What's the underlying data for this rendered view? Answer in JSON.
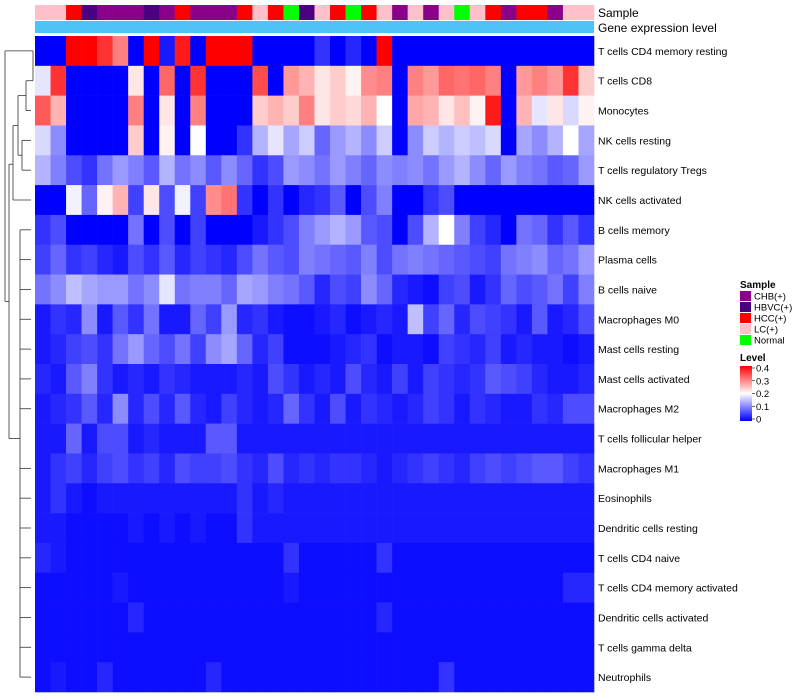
{
  "chart_data": {
    "type": "heatmap",
    "title": "",
    "annotation_tracks": [
      "Sample",
      "Gene expression level"
    ],
    "sample_groups": [
      {
        "name": "CHB(+)",
        "color": "#8B008B"
      },
      {
        "name": "HBVC(+)",
        "color": "#4B0082"
      },
      {
        "name": "HCC(+)",
        "color": "#FF0000"
      },
      {
        "name": "LC(+)",
        "color": "#FFC0CB"
      },
      {
        "name": "Normal",
        "color": "#00FF00"
      }
    ],
    "sample_annotation": [
      3,
      3,
      2,
      1,
      0,
      0,
      0,
      1,
      0,
      2,
      0,
      0,
      0,
      2,
      3,
      2,
      4,
      1,
      3,
      2,
      4,
      2,
      3,
      0,
      3,
      0,
      3,
      4,
      3,
      2,
      0,
      2,
      2,
      0,
      3,
      3
    ],
    "gene_expression_level_color": "#4FC3F7",
    "rows": [
      "T cells CD4 memory resting",
      "T cells CD8",
      "Monocytes",
      "NK cells resting",
      "T cells regulatory  Tregs",
      "NK cells activated",
      "B cells memory",
      "Plasma cells",
      "B cells naive",
      "Macrophages M0",
      "Mast cells resting",
      "Mast cells activated",
      "Macrophages M2",
      "T cells follicular helper",
      "Macrophages M1",
      "Eosinophils",
      "Dendritic cells resting",
      "T cells CD4 naive",
      "T cells CD4 memory activated",
      "Dendritic cells activated",
      "T cells gamma delta",
      "Neutrophils"
    ],
    "values": [
      [
        0.0,
        0.0,
        0.4,
        0.4,
        0.36,
        0.3,
        0.0,
        0.4,
        0.02,
        0.38,
        0.0,
        0.4,
        0.4,
        0.4,
        0.0,
        0.0,
        0.0,
        0.0,
        0.04,
        0.0,
        0.03,
        0.0,
        0.4,
        0.0,
        0.0,
        0.0,
        0.0,
        0.0,
        0.0,
        0.0,
        0.0,
        0.0,
        0.0,
        0.0,
        0.0,
        0.0
      ],
      [
        0.18,
        0.36,
        0.0,
        0.0,
        0.0,
        0.0,
        0.22,
        0.0,
        0.32,
        0.0,
        0.36,
        0.0,
        0.0,
        0.0,
        0.34,
        0.0,
        0.28,
        0.26,
        0.22,
        0.24,
        0.21,
        0.29,
        0.3,
        0.0,
        0.3,
        0.28,
        0.32,
        0.31,
        0.32,
        0.3,
        0.0,
        0.28,
        0.3,
        0.28,
        0.36,
        0.24
      ],
      [
        0.33,
        0.26,
        0.0,
        0.0,
        0.0,
        0.0,
        0.3,
        0.0,
        0.22,
        0.0,
        0.3,
        0.0,
        0.0,
        0.0,
        0.24,
        0.26,
        0.24,
        0.3,
        0.22,
        0.24,
        0.23,
        0.26,
        0.2,
        0.0,
        0.27,
        0.26,
        0.22,
        0.25,
        0.21,
        0.38,
        0.0,
        0.26,
        0.18,
        0.22,
        0.17,
        0.21
      ],
      [
        0.17,
        0.11,
        0.0,
        0.0,
        0.0,
        0.0,
        0.24,
        0.0,
        0.21,
        0.0,
        0.2,
        0.0,
        0.0,
        0.04,
        0.14,
        0.18,
        0.13,
        0.16,
        0.08,
        0.12,
        0.14,
        0.11,
        0.16,
        0.0,
        0.11,
        0.16,
        0.14,
        0.16,
        0.15,
        0.17,
        0.0,
        0.13,
        0.11,
        0.14,
        0.2,
        0.13
      ],
      [
        0.14,
        0.1,
        0.06,
        0.04,
        0.09,
        0.12,
        0.1,
        0.07,
        0.14,
        0.09,
        0.11,
        0.07,
        0.11,
        0.08,
        0.04,
        0.06,
        0.12,
        0.11,
        0.09,
        0.12,
        0.1,
        0.08,
        0.11,
        0.1,
        0.11,
        0.09,
        0.12,
        0.14,
        0.11,
        0.08,
        0.12,
        0.1,
        0.09,
        0.07,
        0.08,
        0.12
      ],
      [
        0.0,
        0.0,
        0.19,
        0.08,
        0.21,
        0.26,
        0.05,
        0.22,
        0.06,
        0.19,
        0.05,
        0.29,
        0.31,
        0.04,
        0.0,
        0.04,
        0.0,
        0.03,
        0.04,
        0.07,
        0.0,
        0.06,
        0.1,
        0.0,
        0.0,
        0.04,
        0.06,
        0.0,
        0.0,
        0.0,
        0.0,
        0.0,
        0.0,
        0.0,
        0.0,
        0.0
      ],
      [
        0.04,
        0.06,
        0.0,
        0.0,
        0.0,
        0.0,
        0.09,
        0.0,
        0.06,
        0.0,
        0.05,
        0.0,
        0.0,
        0.0,
        0.02,
        0.04,
        0.06,
        0.1,
        0.12,
        0.14,
        0.12,
        0.07,
        0.06,
        0.0,
        0.06,
        0.14,
        0.2,
        0.1,
        0.05,
        0.03,
        0.0,
        0.09,
        0.08,
        0.04,
        0.07,
        0.04
      ],
      [
        0.05,
        0.08,
        0.04,
        0.05,
        0.03,
        0.02,
        0.06,
        0.04,
        0.07,
        0.03,
        0.05,
        0.04,
        0.03,
        0.06,
        0.09,
        0.07,
        0.06,
        0.1,
        0.09,
        0.08,
        0.07,
        0.1,
        0.06,
        0.09,
        0.1,
        0.09,
        0.08,
        0.07,
        0.06,
        0.05,
        0.09,
        0.1,
        0.11,
        0.08,
        0.09,
        0.12
      ],
      [
        0.09,
        0.11,
        0.15,
        0.13,
        0.12,
        0.12,
        0.09,
        0.11,
        0.18,
        0.09,
        0.1,
        0.1,
        0.08,
        0.13,
        0.12,
        0.1,
        0.09,
        0.07,
        0.03,
        0.06,
        0.05,
        0.11,
        0.08,
        0.03,
        0.02,
        0.01,
        0.05,
        0.06,
        0.02,
        0.04,
        0.08,
        0.06,
        0.07,
        0.09,
        0.05,
        0.1
      ],
      [
        0.02,
        0.04,
        0.03,
        0.11,
        0.02,
        0.07,
        0.04,
        0.09,
        0.02,
        0.02,
        0.08,
        0.05,
        0.12,
        0.03,
        0.04,
        0.02,
        0.01,
        0.01,
        0.02,
        0.03,
        0.01,
        0.02,
        0.03,
        0.02,
        0.15,
        0.05,
        0.08,
        0.03,
        0.06,
        0.05,
        0.04,
        0.02,
        0.07,
        0.02,
        0.03,
        0.06
      ],
      [
        0.02,
        0.03,
        0.05,
        0.06,
        0.04,
        0.09,
        0.12,
        0.08,
        0.06,
        0.09,
        0.05,
        0.11,
        0.13,
        0.08,
        0.03,
        0.05,
        0.01,
        0.01,
        0.01,
        0.02,
        0.03,
        0.04,
        0.01,
        0.02,
        0.02,
        0.01,
        0.05,
        0.04,
        0.03,
        0.05,
        0.02,
        0.03,
        0.02,
        0.02,
        0.01,
        0.02
      ],
      [
        0.03,
        0.02,
        0.07,
        0.1,
        0.04,
        0.02,
        0.03,
        0.02,
        0.04,
        0.03,
        0.02,
        0.02,
        0.02,
        0.03,
        0.02,
        0.06,
        0.04,
        0.02,
        0.03,
        0.02,
        0.06,
        0.03,
        0.02,
        0.05,
        0.02,
        0.05,
        0.04,
        0.03,
        0.04,
        0.07,
        0.06,
        0.05,
        0.03,
        0.02,
        0.02,
        0.03
      ],
      [
        0.02,
        0.03,
        0.04,
        0.07,
        0.03,
        0.11,
        0.03,
        0.06,
        0.03,
        0.07,
        0.03,
        0.02,
        0.05,
        0.03,
        0.02,
        0.03,
        0.08,
        0.04,
        0.02,
        0.06,
        0.02,
        0.04,
        0.03,
        0.02,
        0.03,
        0.05,
        0.04,
        0.02,
        0.04,
        0.03,
        0.02,
        0.02,
        0.04,
        0.03,
        0.06,
        0.06
      ],
      [
        0.02,
        0.02,
        0.08,
        0.02,
        0.06,
        0.06,
        0.02,
        0.03,
        0.02,
        0.02,
        0.02,
        0.07,
        0.07,
        0.02,
        0.02,
        0.02,
        0.02,
        0.02,
        0.02,
        0.02,
        0.02,
        0.02,
        0.02,
        0.02,
        0.02,
        0.02,
        0.02,
        0.02,
        0.02,
        0.02,
        0.02,
        0.02,
        0.02,
        0.02,
        0.02,
        0.02
      ],
      [
        0.02,
        0.04,
        0.05,
        0.03,
        0.05,
        0.06,
        0.04,
        0.05,
        0.03,
        0.06,
        0.05,
        0.05,
        0.06,
        0.04,
        0.03,
        0.06,
        0.03,
        0.04,
        0.03,
        0.04,
        0.04,
        0.03,
        0.02,
        0.03,
        0.04,
        0.05,
        0.04,
        0.03,
        0.05,
        0.06,
        0.05,
        0.06,
        0.07,
        0.07,
        0.05,
        0.04
      ],
      [
        0.02,
        0.04,
        0.02,
        0.01,
        0.02,
        0.02,
        0.02,
        0.02,
        0.02,
        0.02,
        0.02,
        0.02,
        0.02,
        0.04,
        0.02,
        0.03,
        0.02,
        0.02,
        0.02,
        0.02,
        0.02,
        0.02,
        0.02,
        0.02,
        0.02,
        0.02,
        0.02,
        0.02,
        0.02,
        0.02,
        0.02,
        0.02,
        0.02,
        0.02,
        0.02,
        0.02
      ],
      [
        0.02,
        0.02,
        0.01,
        0.01,
        0.01,
        0.01,
        0.02,
        0.01,
        0.02,
        0.01,
        0.02,
        0.01,
        0.01,
        0.04,
        0.02,
        0.02,
        0.02,
        0.02,
        0.02,
        0.02,
        0.02,
        0.02,
        0.02,
        0.02,
        0.02,
        0.02,
        0.02,
        0.02,
        0.02,
        0.02,
        0.02,
        0.02,
        0.02,
        0.02,
        0.02,
        0.02
      ],
      [
        0.03,
        0.02,
        0.01,
        0.01,
        0.01,
        0.01,
        0.01,
        0.01,
        0.01,
        0.01,
        0.01,
        0.01,
        0.01,
        0.01,
        0.01,
        0.01,
        0.04,
        0.01,
        0.01,
        0.01,
        0.01,
        0.01,
        0.04,
        0.01,
        0.01,
        0.01,
        0.01,
        0.01,
        0.01,
        0.01,
        0.01,
        0.01,
        0.01,
        0.01,
        0.01,
        0.01
      ],
      [
        0.01,
        0.01,
        0.01,
        0.01,
        0.01,
        0.02,
        0.01,
        0.01,
        0.01,
        0.01,
        0.01,
        0.01,
        0.01,
        0.01,
        0.01,
        0.01,
        0.02,
        0.01,
        0.01,
        0.01,
        0.01,
        0.01,
        0.01,
        0.01,
        0.01,
        0.01,
        0.01,
        0.01,
        0.01,
        0.01,
        0.01,
        0.01,
        0.01,
        0.01,
        0.03,
        0.03
      ],
      [
        0.01,
        0.01,
        0.01,
        0.01,
        0.01,
        0.01,
        0.03,
        0.01,
        0.01,
        0.01,
        0.01,
        0.01,
        0.01,
        0.01,
        0.01,
        0.01,
        0.01,
        0.01,
        0.01,
        0.01,
        0.01,
        0.01,
        0.03,
        0.01,
        0.01,
        0.01,
        0.01,
        0.01,
        0.01,
        0.01,
        0.01,
        0.01,
        0.01,
        0.01,
        0.01,
        0.01
      ],
      [
        0.01,
        0.01,
        0.01,
        0.01,
        0.01,
        0.01,
        0.01,
        0.01,
        0.01,
        0.01,
        0.01,
        0.01,
        0.01,
        0.01,
        0.01,
        0.01,
        0.01,
        0.01,
        0.01,
        0.01,
        0.01,
        0.01,
        0.01,
        0.01,
        0.01,
        0.01,
        0.01,
        0.01,
        0.01,
        0.01,
        0.01,
        0.01,
        0.01,
        0.01,
        0.01,
        0.01
      ],
      [
        0.01,
        0.02,
        0.01,
        0.01,
        0.03,
        0.01,
        0.01,
        0.01,
        0.01,
        0.01,
        0.01,
        0.03,
        0.01,
        0.01,
        0.01,
        0.01,
        0.01,
        0.01,
        0.01,
        0.01,
        0.01,
        0.01,
        0.01,
        0.01,
        0.01,
        0.01,
        0.04,
        0.01,
        0.01,
        0.01,
        0.01,
        0.01,
        0.01,
        0.01,
        0.01,
        0.01
      ]
    ],
    "legend": {
      "sample_title": "Sample",
      "level_title": "Level",
      "level_ticks": [
        "0.4",
        "0.3",
        "0.2",
        "0.1",
        "0"
      ],
      "level_range": [
        0,
        0.4
      ],
      "colors": {
        "low": "#0000FF",
        "mid": "#FFFFFF",
        "high": "#FF0000"
      }
    }
  }
}
